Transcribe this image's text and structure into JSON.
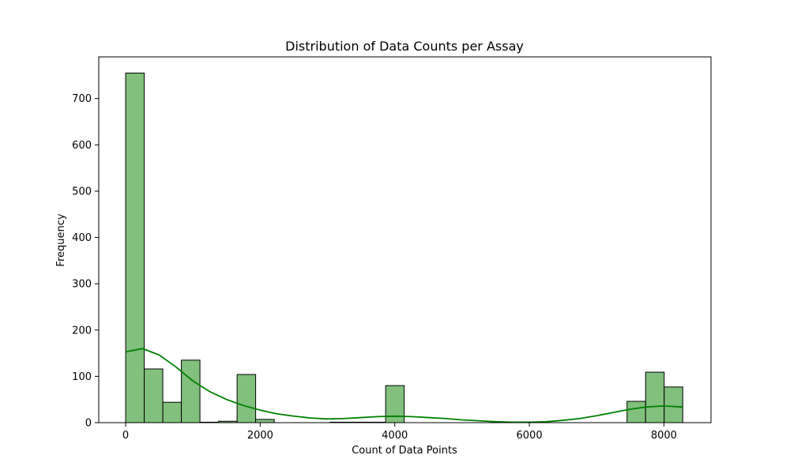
{
  "chart_data": {
    "type": "bar",
    "title": "Distribution of Data Counts per Assay",
    "xlabel": "Count of Data Points",
    "ylabel": "Frequency",
    "xlim": [
      -400,
      8700
    ],
    "ylim": [
      0,
      790
    ],
    "xticks": [
      0,
      2000,
      4000,
      6000,
      8000
    ],
    "yticks": [
      0,
      100,
      200,
      300,
      400,
      500,
      600,
      700
    ],
    "bins": [
      {
        "x0": 0,
        "x1": 276,
        "value": 755
      },
      {
        "x0": 276,
        "x1": 552,
        "value": 116
      },
      {
        "x0": 552,
        "x1": 828,
        "value": 44
      },
      {
        "x0": 828,
        "x1": 1104,
        "value": 135
      },
      {
        "x0": 1104,
        "x1": 1380,
        "value": 1
      },
      {
        "x0": 1380,
        "x1": 1656,
        "value": 3
      },
      {
        "x0": 1656,
        "x1": 1932,
        "value": 104
      },
      {
        "x0": 1932,
        "x1": 2208,
        "value": 7
      },
      {
        "x0": 3036,
        "x1": 3312,
        "value": 1
      },
      {
        "x0": 3312,
        "x1": 3588,
        "value": 1
      },
      {
        "x0": 3588,
        "x1": 3864,
        "value": 1
      },
      {
        "x0": 3864,
        "x1": 4140,
        "value": 80
      },
      {
        "x0": 7452,
        "x1": 7728,
        "value": 46
      },
      {
        "x0": 7728,
        "x1": 8004,
        "value": 109
      },
      {
        "x0": 8004,
        "x1": 8280,
        "value": 77
      }
    ],
    "kde": {
      "x": [
        0,
        250,
        500,
        750,
        1000,
        1250,
        1500,
        1750,
        2000,
        2250,
        2500,
        2750,
        3000,
        3250,
        3500,
        3750,
        4000,
        4250,
        4500,
        4750,
        5000,
        5250,
        5500,
        5750,
        6000,
        6250,
        6500,
        6750,
        7000,
        7250,
        7500,
        7750,
        8000,
        8250,
        8280
      ],
      "y": [
        153,
        160,
        146,
        120,
        90,
        67,
        50,
        37,
        27,
        19,
        14,
        10,
        8,
        9,
        11,
        13,
        14,
        13,
        11,
        9,
        6,
        4,
        2,
        1,
        1,
        2,
        5,
        9,
        15,
        22,
        29,
        34,
        36,
        34,
        33
      ]
    },
    "bar_color": "#81c07d",
    "bar_edge_color": "#000000",
    "kde_color": "#008000",
    "grid": false,
    "legend": "none"
  }
}
